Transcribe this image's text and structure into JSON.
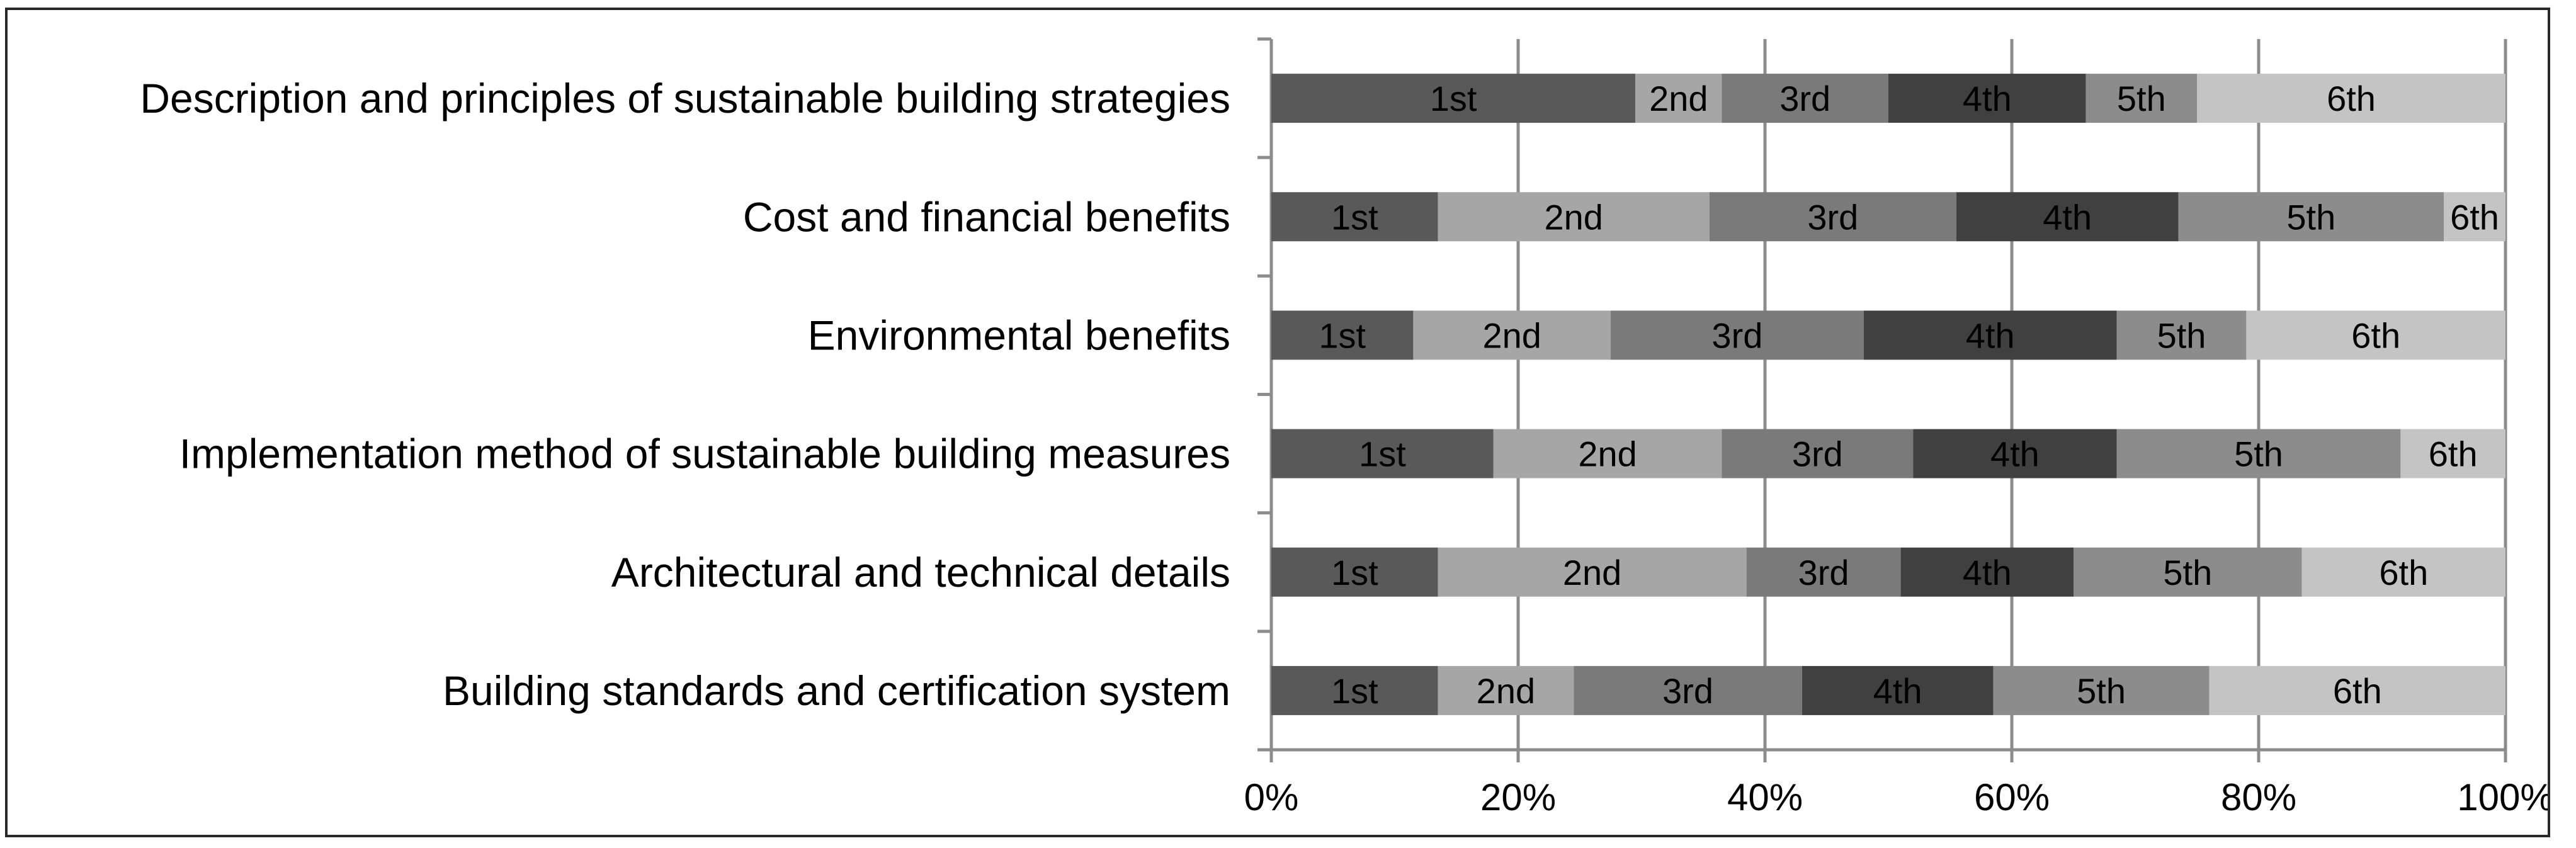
{
  "chart_data": {
    "type": "bar",
    "orientation": "horizontal",
    "stacked": "percent",
    "categories": [
      "Description and principles of sustainable building strategies",
      "Cost and financial benefits",
      "Environmental benefits",
      "Implementation method of sustainable building measures",
      "Architectural and technical details",
      "Building standards and certification system"
    ],
    "series": [
      {
        "name": "1st",
        "color": "#595959",
        "values": [
          29.5,
          13.5,
          11.5,
          18.0,
          13.5,
          13.5
        ]
      },
      {
        "name": "2nd",
        "color": "#a6a6a6",
        "values": [
          7.0,
          22.0,
          16.0,
          18.5,
          25.0,
          11.0
        ]
      },
      {
        "name": "3rd",
        "color": "#7a7a7a",
        "values": [
          13.5,
          20.0,
          20.5,
          15.5,
          12.5,
          18.5
        ]
      },
      {
        "name": "4th",
        "color": "#404040",
        "values": [
          16.0,
          18.0,
          20.5,
          16.5,
          14.0,
          15.5
        ]
      },
      {
        "name": "5th",
        "color": "#8c8c8c",
        "values": [
          9.0,
          21.5,
          10.5,
          23.0,
          18.5,
          17.5
        ]
      },
      {
        "name": "6th",
        "color": "#c4c4c4",
        "values": [
          25.0,
          5.0,
          21.0,
          8.5,
          16.5,
          24.0
        ]
      }
    ],
    "x_ticks": [
      "0%",
      "20%",
      "40%",
      "60%",
      "80%",
      "100%"
    ],
    "xlim": [
      0,
      100
    ],
    "grid": true,
    "legend": "none"
  }
}
